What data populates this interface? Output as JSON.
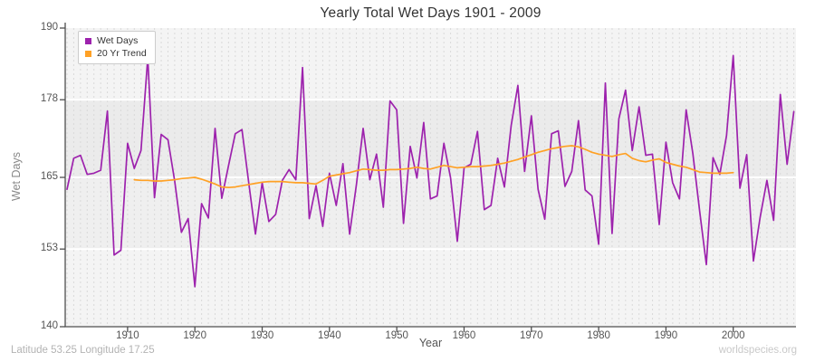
{
  "header": {
    "title": "Yearly Total Wet Days 1901 - 2009"
  },
  "footer": {
    "left": "Latitude 53.25 Longitude 17.25",
    "right": "worldspecies.org"
  },
  "colors": {
    "wet_days_line": "#9d22ad",
    "trend_line": "#ffa125",
    "axis": "#4d4d4d",
    "tick_text": "#555555",
    "grid_vertical": "#d9d9d9",
    "grid_horizontal": "#ffffff",
    "band_140_153": "#f4f4f4",
    "band_153_165": "#efefef",
    "band_165_178": "#ebebeb",
    "band_178_190": "#f4f4f4"
  },
  "chart_data": {
    "type": "line",
    "title": "Yearly Total Wet Days 1901 - 2009",
    "xlabel": "Year",
    "ylabel": "Wet Days",
    "xlim": [
      1901,
      2009
    ],
    "ylim": [
      140,
      190
    ],
    "yticks": [
      140,
      153,
      165,
      178,
      190
    ],
    "xticks": [
      1910,
      1920,
      1930,
      1940,
      1950,
      1960,
      1970,
      1980,
      1990,
      2000
    ],
    "grid": "vertical dashed per year, white horizontal lines at yticks, alternating gray bands",
    "legend_position": "top-left",
    "bands": [
      {
        "from": 140,
        "to": 153,
        "color_key": "band_140_153"
      },
      {
        "from": 153,
        "to": 165,
        "color_key": "band_153_165"
      },
      {
        "from": 165,
        "to": 178,
        "color_key": "band_165_178"
      },
      {
        "from": 178,
        "to": 190,
        "color_key": "band_178_190"
      }
    ],
    "series": [
      {
        "name": "Wet Days",
        "color": "#9d22ad",
        "x_start": 1901,
        "values": [
          163.0,
          168.2,
          168.7,
          165.5,
          165.7,
          166.2,
          176.1,
          152.0,
          152.8,
          170.7,
          166.5,
          169.5,
          185.1,
          161.6,
          172.2,
          171.3,
          164.4,
          155.8,
          158.1,
          146.7,
          160.6,
          158.2,
          173.2,
          161.5,
          167.0,
          172.3,
          173.0,
          164.2,
          155.5,
          164.1,
          157.6,
          158.8,
          164.5,
          166.3,
          164.6,
          183.4,
          158.1,
          163.6,
          156.8,
          165.7,
          160.3,
          167.3,
          155.5,
          163.8,
          173.2,
          164.6,
          168.9,
          160.0,
          177.8,
          176.3,
          157.3,
          170.2,
          164.9,
          174.2,
          161.4,
          161.9,
          170.7,
          164.9,
          154.3,
          166.6,
          167.2,
          172.7,
          159.6,
          160.3,
          168.2,
          163.4,
          173.7,
          180.4,
          166.0,
          175.3,
          163.0,
          158.0,
          172.3,
          172.8,
          163.5,
          166.0,
          174.5,
          162.9,
          161.9,
          153.8,
          180.8,
          155.6,
          174.8,
          179.6,
          169.5,
          176.8,
          168.7,
          168.9,
          157.1,
          170.9,
          164.1,
          161.4,
          176.3,
          169.0,
          159.4,
          150.4,
          168.3,
          165.5,
          172.0,
          185.4,
          163.2,
          168.8,
          151.0,
          158.3,
          164.5,
          157.8,
          178.9,
          167.2,
          176.0
        ]
      },
      {
        "name": "20 Yr Trend",
        "color": "#ffa125",
        "x_start": 1911,
        "values": [
          164.6,
          164.5,
          164.5,
          164.4,
          164.4,
          164.5,
          164.6,
          164.8,
          164.9,
          165.0,
          164.7,
          164.3,
          163.9,
          163.4,
          163.3,
          163.4,
          163.6,
          163.8,
          164.0,
          164.2,
          164.3,
          164.3,
          164.3,
          164.2,
          164.1,
          164.1,
          164.0,
          163.9,
          164.5,
          165.2,
          165.4,
          165.6,
          165.8,
          166.1,
          166.4,
          166.3,
          166.2,
          166.2,
          166.3,
          166.3,
          166.4,
          166.5,
          166.7,
          166.5,
          166.4,
          166.7,
          167.0,
          166.8,
          166.6,
          166.7,
          166.8,
          166.8,
          166.9,
          167.0,
          167.2,
          167.4,
          167.7,
          168.0,
          168.4,
          168.8,
          169.2,
          169.5,
          169.8,
          170.0,
          170.2,
          170.3,
          170.1,
          169.7,
          169.2,
          168.9,
          168.7,
          168.5,
          168.8,
          169.0,
          168.2,
          167.8,
          167.6,
          167.9,
          168.1,
          167.5,
          167.2,
          166.9,
          166.7,
          166.3,
          165.9,
          165.8,
          165.7,
          165.7,
          165.7,
          165.8
        ]
      }
    ]
  }
}
